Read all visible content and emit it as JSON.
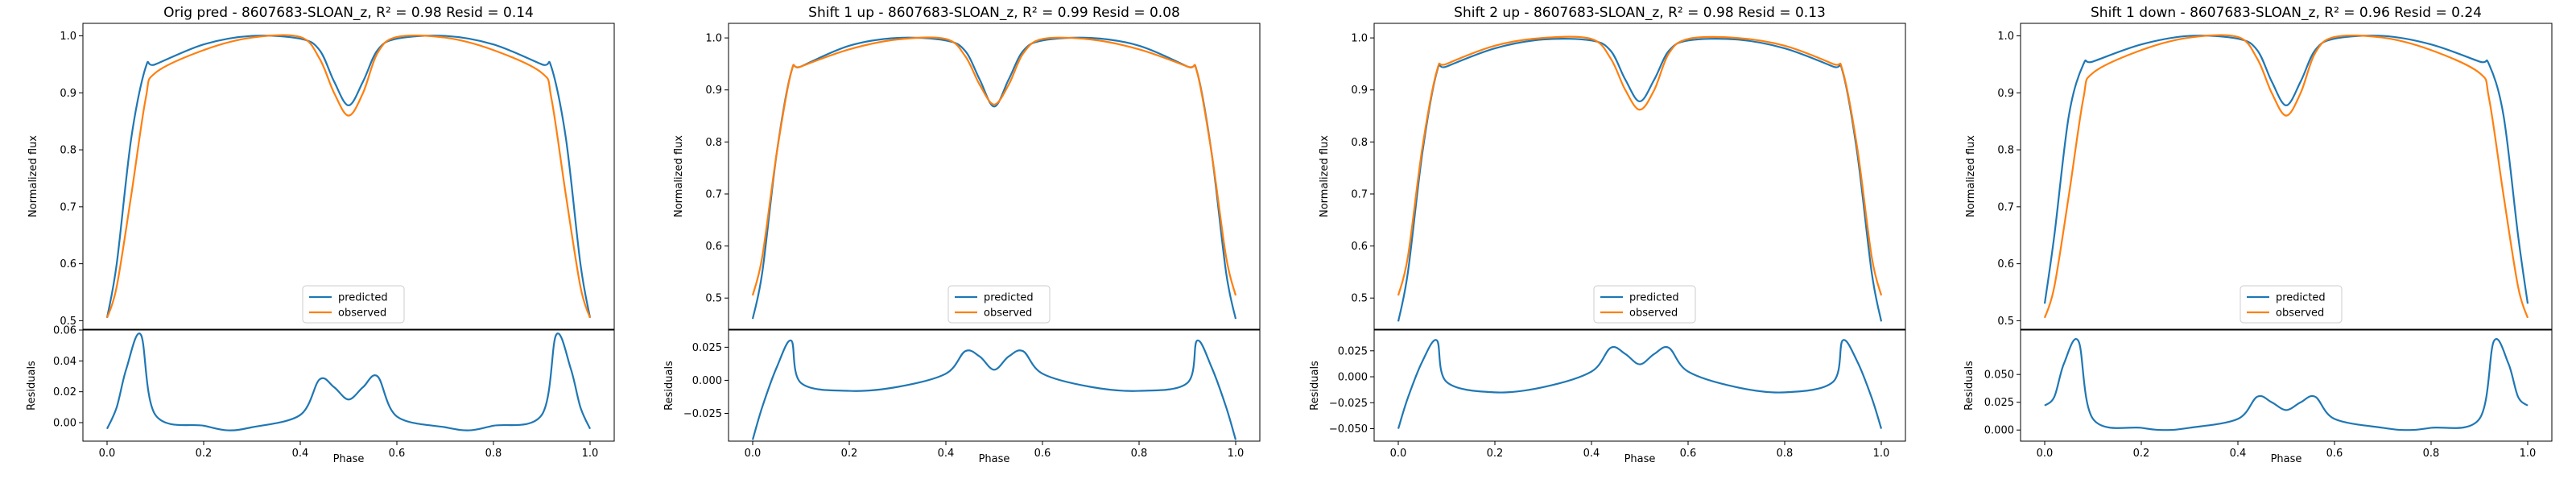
{
  "figure": {
    "type": "line",
    "panels": [
      {
        "title": "Orig pred - 8607683-SLOAN_z, R² = 0.98 Resid = 0.14",
        "shift": 0,
        "top": {
          "ylabel": "Normalized flux",
          "ylim": [
            0.485,
            1.022
          ],
          "yticks": [
            "0.5",
            "0.6",
            "0.7",
            "0.8",
            "0.9",
            "1.0"
          ],
          "ytick_values": [
            0.5,
            0.6,
            0.7,
            0.8,
            0.9,
            1.0
          ]
        },
        "bottom": {
          "ylabel": "Residuals",
          "ylim": [
            -0.012,
            0.06
          ],
          "yticks": [
            "0.00",
            "0.02",
            "0.04",
            "0.06"
          ],
          "ytick_values": [
            0.0,
            0.02,
            0.04,
            0.06
          ]
        }
      },
      {
        "title": "Shift 1 up - 8607683-SLOAN_z, R² = 0.99 Resid = 0.08",
        "shift": 1,
        "top": {
          "ylabel": "Normalized flux",
          "ylim": [
            0.44,
            1.028
          ],
          "yticks": [
            "0.5",
            "0.6",
            "0.7",
            "0.8",
            "0.9",
            "1.0"
          ],
          "ytick_values": [
            0.5,
            0.6,
            0.7,
            0.8,
            0.9,
            1.0
          ]
        },
        "bottom": {
          "ylabel": "Residuals",
          "ylim": [
            -0.046,
            0.038
          ],
          "yticks": [
            "−0.025",
            "0.000",
            "0.025"
          ],
          "ytick_values": [
            -0.025,
            0.0,
            0.025
          ]
        }
      },
      {
        "title": "Shift 2 up - 8607683-SLOAN_z, R² = 0.98 Resid = 0.13",
        "shift": 2,
        "top": {
          "ylabel": "Normalized flux",
          "ylim": [
            0.44,
            1.028
          ],
          "yticks": [
            "0.5",
            "0.6",
            "0.7",
            "0.8",
            "0.9",
            "1.0"
          ],
          "ytick_values": [
            0.5,
            0.6,
            0.7,
            0.8,
            0.9,
            1.0
          ]
        },
        "bottom": {
          "ylabel": "Residuals",
          "ylim": [
            -0.062,
            0.045
          ],
          "yticks": [
            "−0.050",
            "−0.025",
            "0.000",
            "0.025"
          ],
          "ytick_values": [
            -0.05,
            -0.025,
            0.0,
            0.025
          ]
        }
      },
      {
        "title": "Shift 1 down - 8607683-SLOAN_z, R² = 0.96 Resid = 0.24",
        "shift": -1,
        "top": {
          "ylabel": "Normalized flux",
          "ylim": [
            0.485,
            1.022
          ],
          "yticks": [
            "0.5",
            "0.6",
            "0.7",
            "0.8",
            "0.9",
            "1.0"
          ],
          "ytick_values": [
            0.5,
            0.6,
            0.7,
            0.8,
            0.9,
            1.0
          ]
        },
        "bottom": {
          "ylabel": "Residuals",
          "ylim": [
            -0.01,
            0.09
          ],
          "yticks": [
            "0.000",
            "0.025",
            "0.050"
          ],
          "ytick_values": [
            0.0,
            0.025,
            0.05
          ]
        }
      }
    ],
    "xlabel": "Phase",
    "xlim": [
      -0.05,
      1.05
    ],
    "xticks": [
      "0.0",
      "0.2",
      "0.4",
      "0.6",
      "0.8",
      "1.0"
    ],
    "xtick_values": [
      0.0,
      0.2,
      0.4,
      0.6,
      0.8,
      1.0
    ],
    "legend": {
      "placement": "lower-center",
      "entries": [
        "predicted",
        "observed"
      ]
    },
    "colors": {
      "predicted": "#1f77b4",
      "observed": "#ff7f0e"
    }
  },
  "chart_data": [
    {
      "type": "line",
      "title": "Orig pred - 8607683-SLOAN_z, R² = 0.98 Resid = 0.14",
      "xlabel": "Phase",
      "ylabel": "Normalized flux",
      "xlim": [
        -0.05,
        1.05
      ],
      "ylim": [
        0.485,
        1.022
      ],
      "x": [
        0.0,
        0.02,
        0.05,
        0.08,
        0.1,
        0.2,
        0.3,
        0.4,
        0.44,
        0.47,
        0.5,
        0.53,
        0.56,
        0.6,
        0.7,
        0.8,
        0.9,
        0.92,
        0.95,
        0.98,
        1.0
      ],
      "series": [
        {
          "name": "predicted",
          "values": [
            0.505,
            0.6,
            0.82,
            0.945,
            0.95,
            0.985,
            1.0,
            0.995,
            0.975,
            0.92,
            0.878,
            0.92,
            0.975,
            0.995,
            1.0,
            0.985,
            0.95,
            0.945,
            0.82,
            0.6,
            0.505
          ]
        },
        {
          "name": "observed",
          "values": [
            0.505,
            0.56,
            0.72,
            0.89,
            0.935,
            0.975,
            0.997,
            0.998,
            0.96,
            0.9,
            0.86,
            0.9,
            0.97,
            0.998,
            0.997,
            0.975,
            0.935,
            0.89,
            0.72,
            0.56,
            0.505
          ]
        }
      ],
      "residuals": {
        "ylabel": "Residuals",
        "ylim": [
          -0.012,
          0.06
        ],
        "x": [
          0.0,
          0.02,
          0.04,
          0.07,
          0.1,
          0.2,
          0.25,
          0.3,
          0.4,
          0.44,
          0.47,
          0.5,
          0.53,
          0.56,
          0.6,
          0.7,
          0.75,
          0.8,
          0.9,
          0.93,
          0.96,
          0.98,
          1.0
        ],
        "values": [
          -0.004,
          0.01,
          0.035,
          0.057,
          0.005,
          -0.002,
          -0.005,
          -0.003,
          0.005,
          0.028,
          0.023,
          0.015,
          0.023,
          0.03,
          0.004,
          -0.003,
          -0.005,
          -0.002,
          0.005,
          0.057,
          0.035,
          0.01,
          -0.004
        ]
      }
    },
    {
      "type": "line",
      "title": "Shift 1 up - 8607683-SLOAN_z, R² = 0.99 Resid = 0.08",
      "xlabel": "Phase",
      "ylabel": "Normalized flux",
      "xlim": [
        -0.05,
        1.05
      ],
      "ylim": [
        0.44,
        1.028
      ],
      "x": [
        0.0,
        0.02,
        0.05,
        0.08,
        0.1,
        0.2,
        0.3,
        0.4,
        0.44,
        0.47,
        0.5,
        0.53,
        0.56,
        0.6,
        0.7,
        0.8,
        0.9,
        0.92,
        0.95,
        0.98,
        1.0
      ],
      "series": [
        {
          "name": "predicted",
          "values": [
            0.46,
            0.55,
            0.78,
            0.935,
            0.945,
            0.985,
            1.0,
            0.995,
            0.975,
            0.92,
            0.868,
            0.92,
            0.975,
            0.995,
            1.0,
            0.985,
            0.945,
            0.935,
            0.78,
            0.55,
            0.46
          ]
        },
        {
          "name": "observed",
          "values": [
            0.505,
            0.58,
            0.78,
            0.935,
            0.945,
            0.978,
            0.997,
            0.998,
            0.965,
            0.91,
            0.872,
            0.91,
            0.97,
            0.998,
            0.997,
            0.978,
            0.945,
            0.935,
            0.78,
            0.58,
            0.505
          ]
        }
      ],
      "residuals": {
        "ylabel": "Residuals",
        "ylim": [
          -0.046,
          0.038
        ],
        "x": [
          0.0,
          0.02,
          0.05,
          0.08,
          0.1,
          0.2,
          0.3,
          0.4,
          0.44,
          0.47,
          0.5,
          0.53,
          0.56,
          0.6,
          0.7,
          0.8,
          0.9,
          0.92,
          0.95,
          0.98,
          1.0
        ],
        "values": [
          -0.045,
          -0.02,
          0.01,
          0.03,
          -0.002,
          -0.008,
          -0.005,
          0.005,
          0.022,
          0.018,
          0.008,
          0.018,
          0.022,
          0.005,
          -0.005,
          -0.008,
          -0.002,
          0.03,
          0.01,
          -0.02,
          -0.045
        ]
      }
    },
    {
      "type": "line",
      "title": "Shift 2 up - 8607683-SLOAN_z, R² = 0.98 Resid = 0.13",
      "xlabel": "Phase",
      "ylabel": "Normalized flux",
      "xlim": [
        -0.05,
        1.05
      ],
      "ylim": [
        0.44,
        1.028
      ],
      "x": [
        0.0,
        0.02,
        0.05,
        0.08,
        0.1,
        0.2,
        0.3,
        0.4,
        0.44,
        0.47,
        0.5,
        0.53,
        0.56,
        0.6,
        0.7,
        0.8,
        0.9,
        0.92,
        0.95,
        0.98,
        1.0
      ],
      "series": [
        {
          "name": "predicted",
          "values": [
            0.455,
            0.55,
            0.78,
            0.935,
            0.945,
            0.98,
            0.997,
            0.995,
            0.975,
            0.92,
            0.878,
            0.92,
            0.975,
            0.995,
            0.997,
            0.98,
            0.945,
            0.935,
            0.78,
            0.55,
            0.455
          ]
        },
        {
          "name": "observed",
          "values": [
            0.505,
            0.58,
            0.79,
            0.937,
            0.95,
            0.985,
            1.0,
            0.998,
            0.96,
            0.9,
            0.862,
            0.9,
            0.97,
            0.998,
            1.0,
            0.985,
            0.95,
            0.937,
            0.79,
            0.58,
            0.505
          ]
        }
      ],
      "residuals": {
        "ylabel": "Residuals",
        "ylim": [
          -0.062,
          0.045
        ],
        "x": [
          0.0,
          0.02,
          0.05,
          0.08,
          0.1,
          0.2,
          0.3,
          0.4,
          0.44,
          0.47,
          0.5,
          0.53,
          0.56,
          0.6,
          0.7,
          0.8,
          0.9,
          0.92,
          0.95,
          0.98,
          1.0
        ],
        "values": [
          -0.05,
          -0.02,
          0.015,
          0.035,
          -0.005,
          -0.015,
          -0.01,
          0.005,
          0.028,
          0.022,
          0.012,
          0.022,
          0.028,
          0.005,
          -0.01,
          -0.015,
          -0.005,
          0.035,
          0.015,
          -0.02,
          -0.05
        ]
      }
    },
    {
      "type": "line",
      "title": "Shift 1 down - 8607683-SLOAN_z, R² = 0.96 Resid = 0.24",
      "xlabel": "Phase",
      "ylabel": "Normalized flux",
      "xlim": [
        -0.05,
        1.05
      ],
      "ylim": [
        0.485,
        1.022
      ],
      "x": [
        0.0,
        0.02,
        0.05,
        0.08,
        0.1,
        0.2,
        0.3,
        0.4,
        0.44,
        0.47,
        0.5,
        0.53,
        0.56,
        0.6,
        0.7,
        0.8,
        0.9,
        0.92,
        0.95,
        0.98,
        1.0
      ],
      "series": [
        {
          "name": "predicted",
          "values": [
            0.53,
            0.65,
            0.86,
            0.95,
            0.955,
            0.985,
            1.0,
            0.995,
            0.975,
            0.92,
            0.878,
            0.92,
            0.975,
            0.995,
            1.0,
            0.985,
            0.955,
            0.95,
            0.86,
            0.65,
            0.53
          ]
        },
        {
          "name": "observed",
          "values": [
            0.505,
            0.56,
            0.72,
            0.89,
            0.935,
            0.975,
            0.997,
            0.998,
            0.96,
            0.9,
            0.86,
            0.9,
            0.97,
            0.998,
            0.997,
            0.975,
            0.935,
            0.89,
            0.72,
            0.56,
            0.505
          ]
        }
      ],
      "residuals": {
        "ylabel": "Residuals",
        "ylim": [
          -0.01,
          0.09
        ],
        "x": [
          0.0,
          0.02,
          0.04,
          0.07,
          0.1,
          0.2,
          0.25,
          0.3,
          0.4,
          0.44,
          0.47,
          0.5,
          0.53,
          0.56,
          0.6,
          0.7,
          0.75,
          0.8,
          0.9,
          0.93,
          0.96,
          0.98,
          1.0
        ],
        "values": [
          0.022,
          0.03,
          0.06,
          0.08,
          0.01,
          0.002,
          0.0,
          0.002,
          0.01,
          0.03,
          0.025,
          0.018,
          0.025,
          0.03,
          0.01,
          0.002,
          0.0,
          0.002,
          0.01,
          0.08,
          0.06,
          0.03,
          0.022
        ]
      }
    }
  ]
}
